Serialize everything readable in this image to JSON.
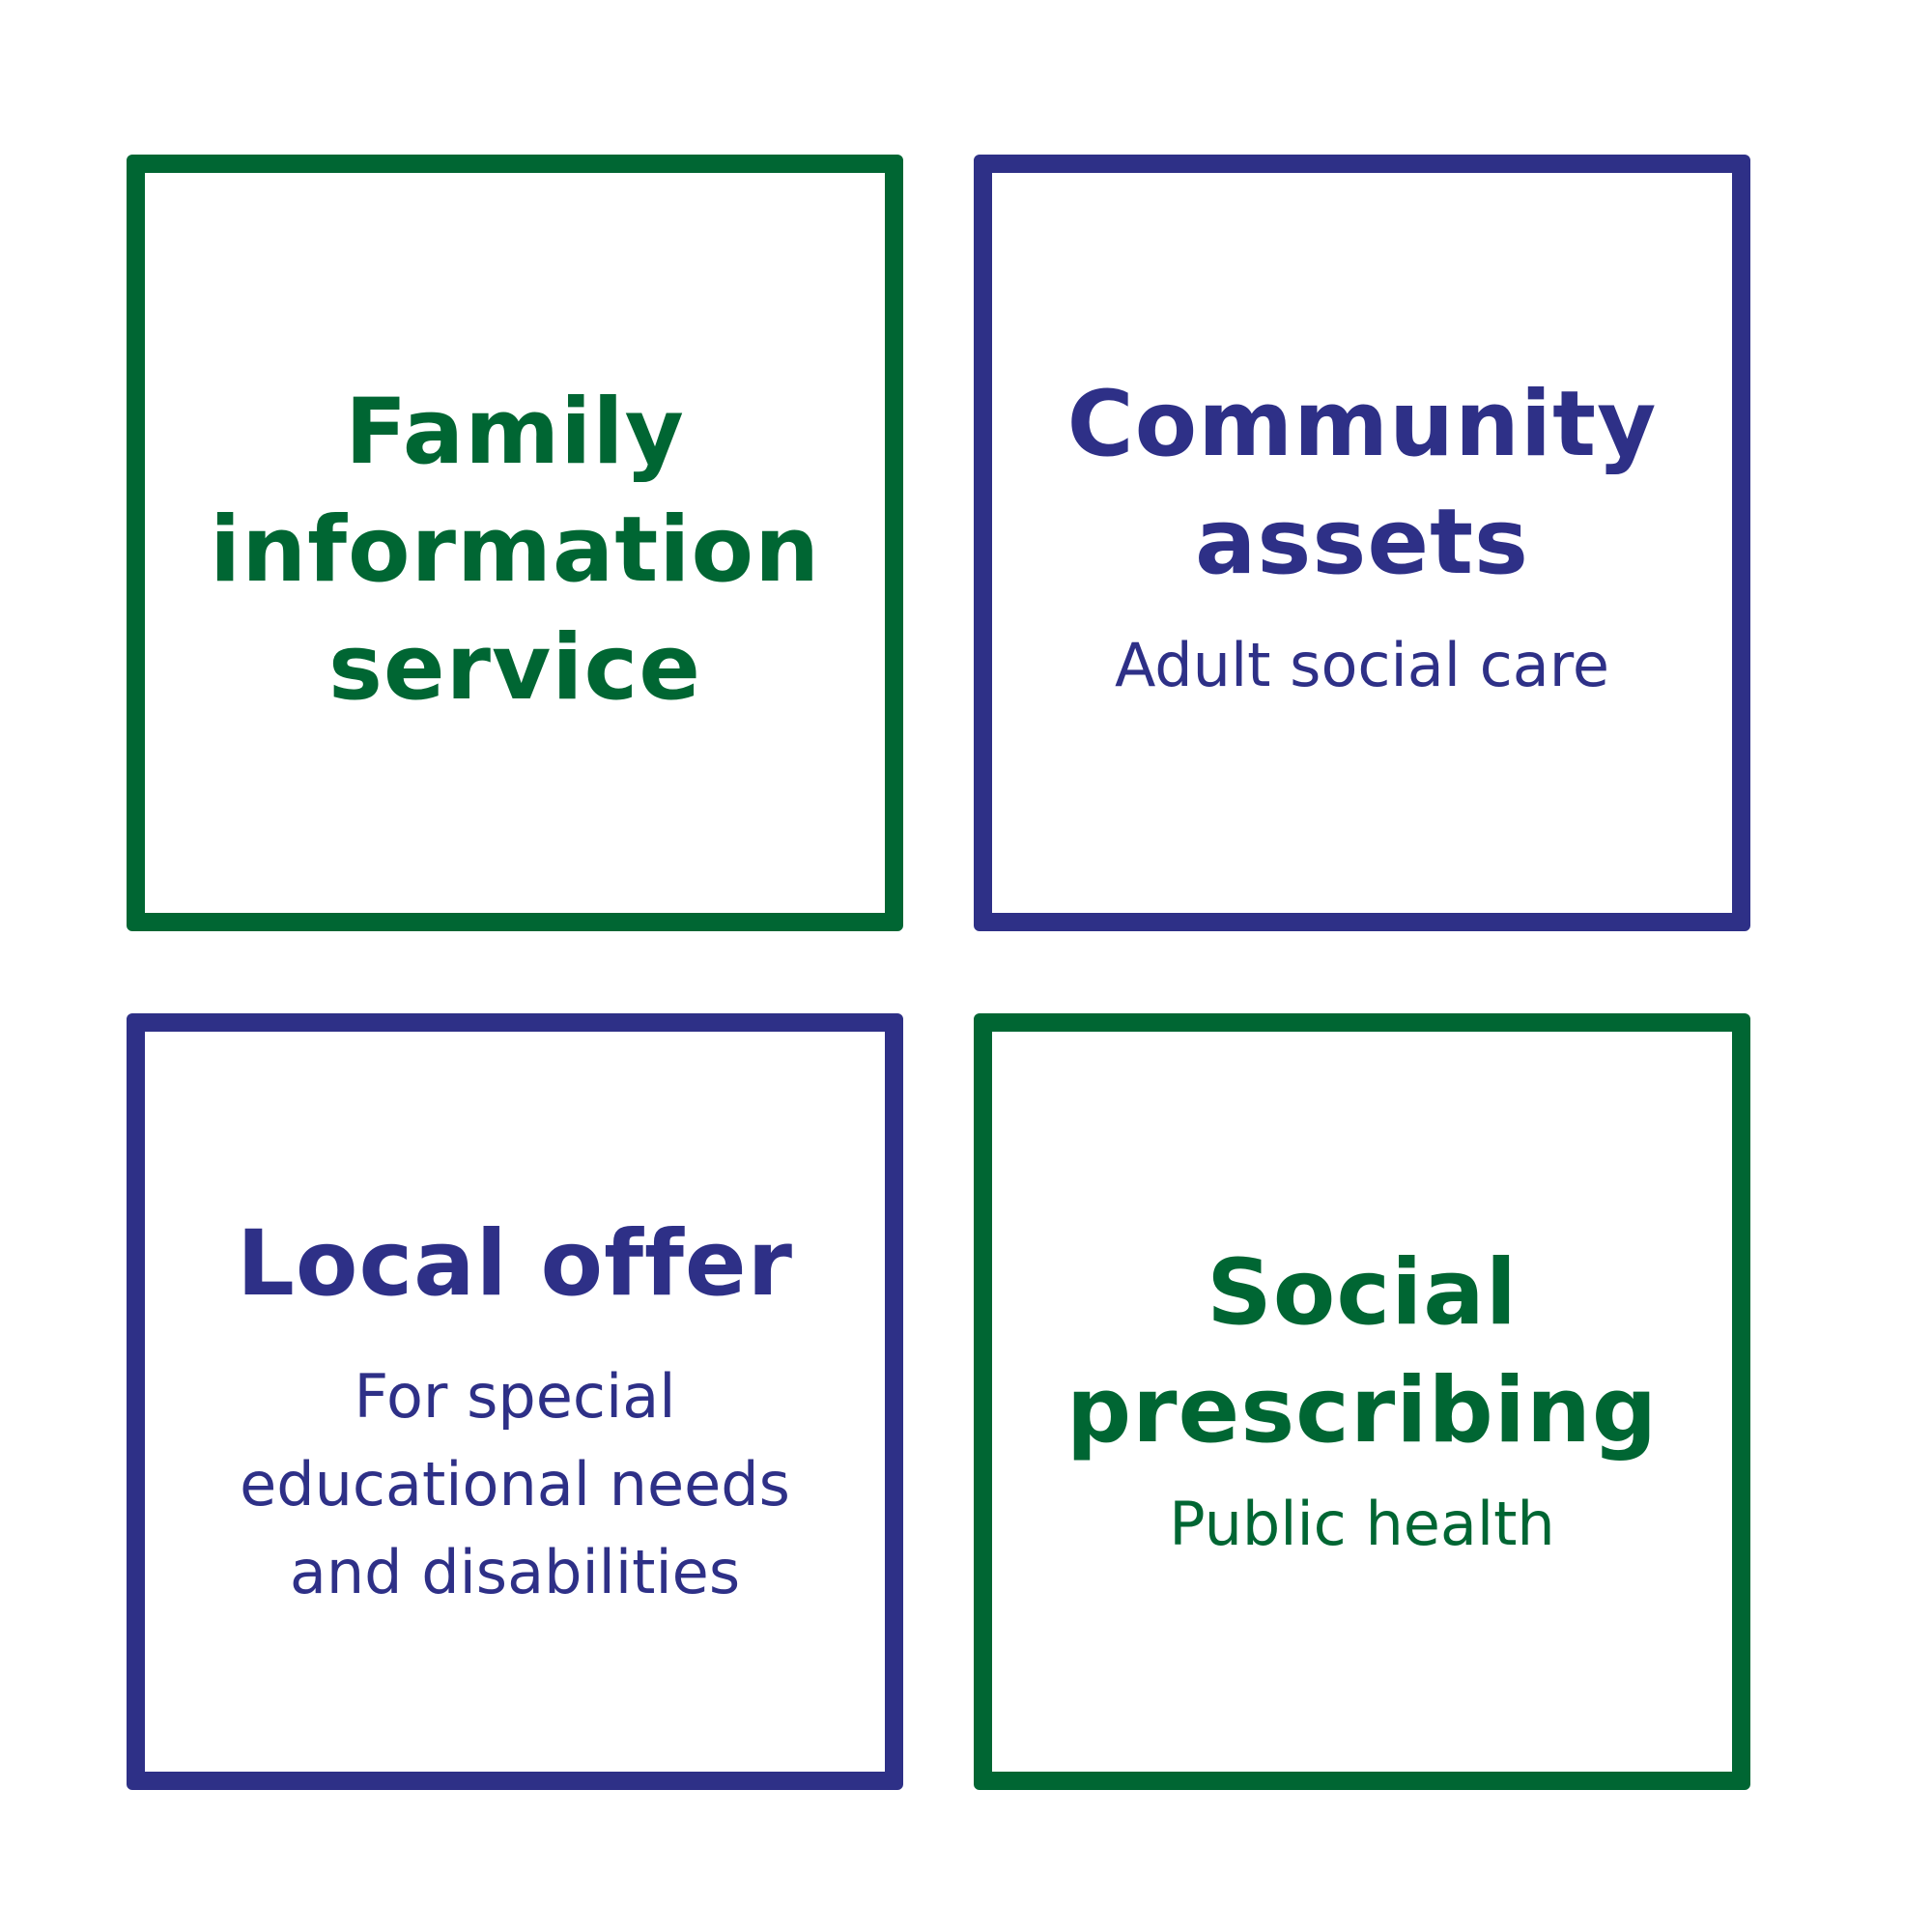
{
  "colors": {
    "green": "#006633",
    "blue": "#2e3087"
  },
  "boxes": {
    "family": {
      "title": "Family\ninformation\nservice"
    },
    "community": {
      "title": "Community\nassets",
      "subtitle": "Adult social care"
    },
    "local": {
      "title": "Local offer",
      "subtitle": "For special\neducational needs\nand disabilities"
    },
    "social": {
      "title": "Social\nprescribing",
      "subtitle": "Public health"
    }
  }
}
